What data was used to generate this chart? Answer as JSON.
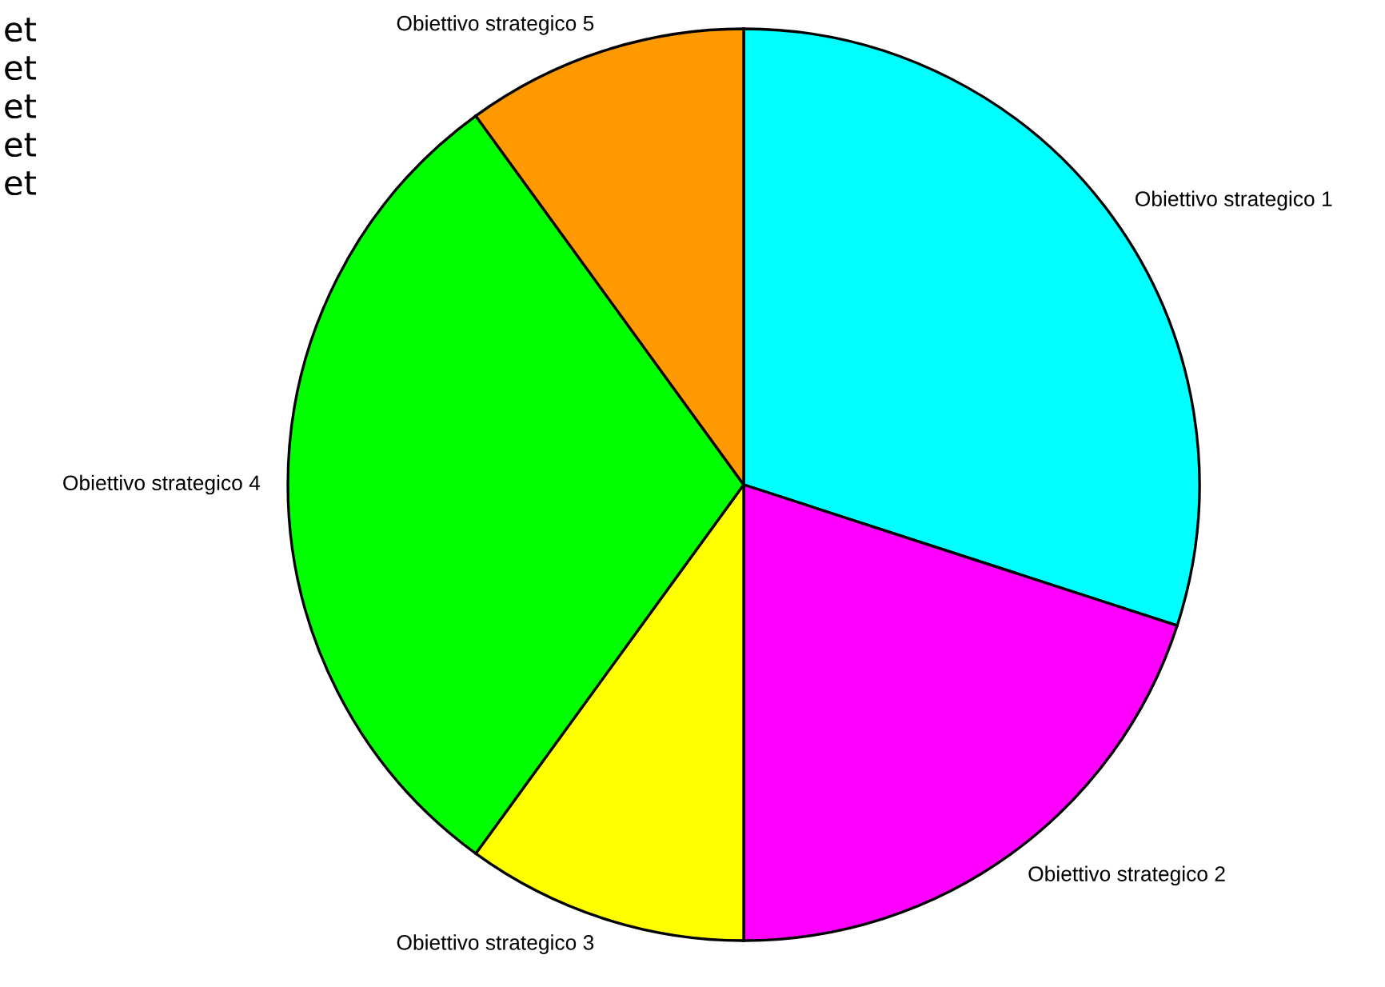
{
  "chart_data": {
    "type": "pie",
    "categories": [
      "Obiettivo strategico 1",
      "Obiettivo strategico 2",
      "Obiettivo strategico 3",
      "Obiettivo strategico 4",
      "Obiettivo strategico 5"
    ],
    "values": [
      30,
      20,
      10,
      30,
      10
    ],
    "colors": [
      "#00ffff",
      "#ff00ff",
      "#ffff00",
      "#00ff00",
      "#ff9900"
    ],
    "annotations": [
      "et",
      "et",
      "et",
      "et",
      "et"
    ]
  }
}
